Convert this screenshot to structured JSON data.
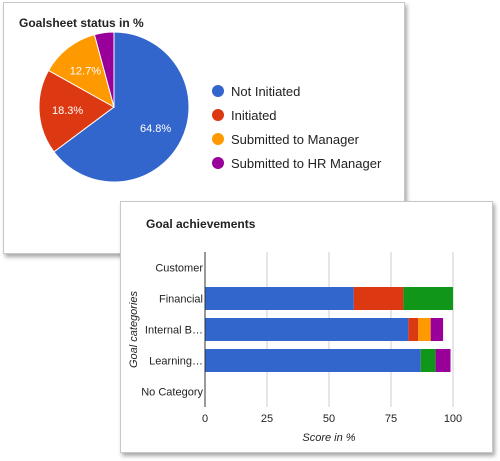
{
  "chart_data": [
    {
      "type": "pie",
      "title": "Goalsheet status in %",
      "slices": [
        {
          "name": "Not Initiated",
          "value": 64.8,
          "label": "64.8%",
          "color": "#3366cc"
        },
        {
          "name": "Initiated",
          "value": 18.3,
          "label": "18.3%",
          "color": "#dc3912"
        },
        {
          "name": "Submitted to Manager",
          "value": 12.7,
          "label": "12.7%",
          "color": "#ff9900"
        },
        {
          "name": "Submitted to HR Manager",
          "value": 4.2,
          "label": "",
          "color": "#990099"
        }
      ],
      "legend_position": "right"
    },
    {
      "type": "bar",
      "orientation": "horizontal",
      "stacked": true,
      "title": "Goal achievements",
      "xlabel": "Score in %",
      "ylabel": "Goal categories",
      "categories": [
        "Customer",
        "Financial",
        "Internal B…",
        "Learning…",
        "No Category"
      ],
      "series": [
        {
          "values": [
            0,
            60,
            82,
            87,
            0
          ],
          "color": "#3366cc"
        },
        {
          "values": [
            0,
            20,
            4,
            0,
            0
          ],
          "color": "#dc3912"
        },
        {
          "values": [
            0,
            0,
            5,
            0,
            0
          ],
          "color": "#ff9900"
        },
        {
          "values": [
            0,
            20,
            0,
            6,
            0
          ],
          "color": "#109618"
        },
        {
          "values": [
            0,
            0,
            5,
            6,
            0
          ],
          "color": "#990099"
        }
      ],
      "xlim": [
        0,
        100
      ],
      "xticks": [
        "0",
        "25",
        "50",
        "75",
        "100"
      ],
      "grid": true
    }
  ]
}
